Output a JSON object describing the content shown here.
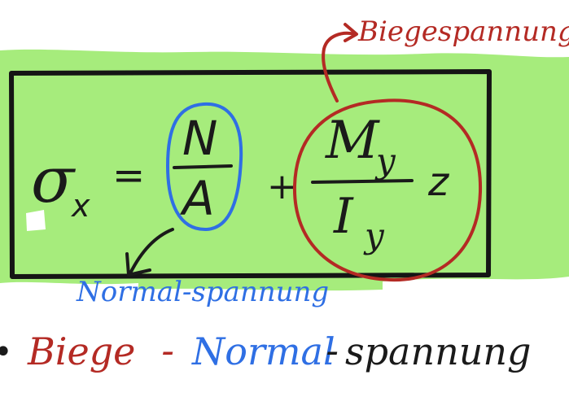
{
  "colors": {
    "highlight_green": "#a6ec7c",
    "box_border": "#151515",
    "ink_black": "#1a1a1a",
    "ink_blue": "#2f6fe4",
    "ink_red": "#b42a24"
  },
  "annotations": {
    "bending_stress_label": "Biegespannung",
    "normal_stress_label": "Normal-spannung"
  },
  "formula": {
    "lhs_symbol": "σ",
    "lhs_subscript": "x",
    "equals": "=",
    "term1_numerator": "N",
    "term1_denominator": "A",
    "plus": "+",
    "term2_numerator_symbol": "M",
    "term2_numerator_subscript": "y",
    "term2_denominator_symbol": "I",
    "term2_denominator_subscript": "y",
    "term2_factor": "z"
  },
  "summary_line": {
    "bullet": "•",
    "part1": "Biege",
    "dash1": "-",
    "part2": "Normal",
    "dash2": "-",
    "part3": "spannung"
  }
}
